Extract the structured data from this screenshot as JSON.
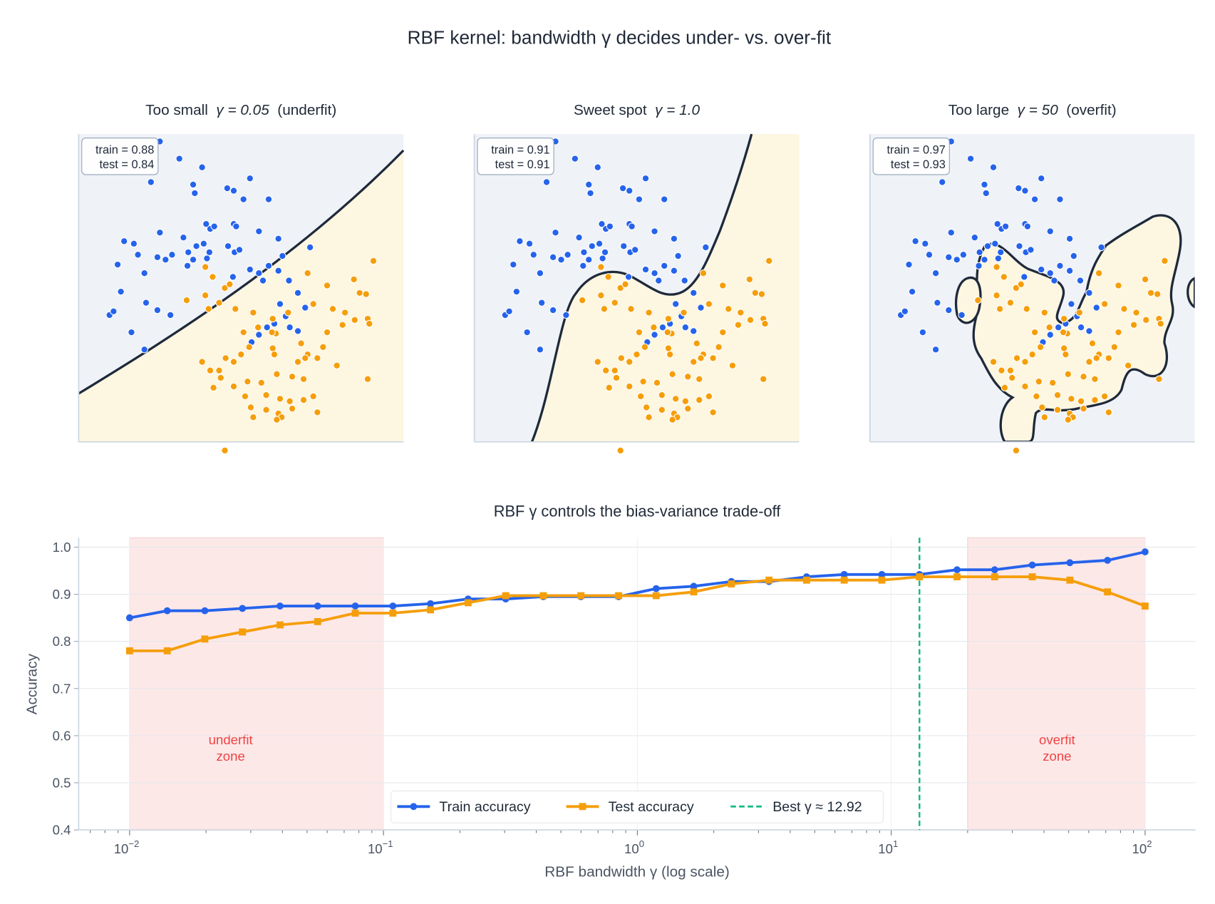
{
  "title": "RBF kernel: bandwidth γ decides under- vs. over-fit",
  "colors": {
    "class0": "#2563eb",
    "class1": "#f59e0b",
    "region0": "#eff2f7",
    "region1": "#fdf6e0",
    "boundary": "#1e293b",
    "zone": "#fde8e8",
    "zone_text": "#ef4444",
    "best": "#10b981"
  },
  "panels": [
    {
      "title_prefix": "Too small  ",
      "gamma_text": "γ = 0.05",
      "title_suffix": "  (underfit)",
      "train_label": "train = 0.88",
      "test_label": "test = 0.84"
    },
    {
      "title_prefix": "Sweet spot  ",
      "gamma_text": "γ = 1.0",
      "title_suffix": "",
      "train_label": "train = 0.91",
      "test_label": "test = 0.91"
    },
    {
      "title_prefix": "Too large  ",
      "gamma_text": "γ = 50",
      "title_suffix": "  (overfit)",
      "train_label": "train = 0.97",
      "test_label": "test = 0.93"
    }
  ],
  "scatter_data": {
    "xlim": [
      -1.5,
      2.5
    ],
    "ylim": [
      -1.0,
      1.5
    ],
    "class0": [
      [
        -0.5,
        1.44
      ],
      [
        -0.26,
        1.3
      ],
      [
        0.02,
        1.23
      ],
      [
        -0.61,
        1.11
      ],
      [
        -0.09,
        1.09
      ],
      [
        -0.07,
        1.02
      ],
      [
        0.33,
        1.06
      ],
      [
        0.41,
        1.04
      ],
      [
        0.61,
        1.14
      ],
      [
        0.84,
        0.97
      ],
      [
        0.53,
        0.97
      ],
      [
        -0.5,
        0.7
      ],
      [
        -0.21,
        0.66
      ],
      [
        0.12,
        0.73
      ],
      [
        0.17,
        0.75
      ],
      [
        0.41,
        0.77
      ],
      [
        0.44,
        0.75
      ],
      [
        0.07,
        0.77
      ],
      [
        -0.05,
        0.59
      ],
      [
        -0.15,
        0.54
      ],
      [
        0.04,
        0.61
      ],
      [
        0.11,
        0.54
      ],
      [
        -0.94,
        0.63
      ],
      [
        -0.82,
        0.61
      ],
      [
        -0.77,
        0.52
      ],
      [
        -0.53,
        0.5
      ],
      [
        -0.43,
        0.48
      ],
      [
        -0.35,
        0.52
      ],
      [
        -0.16,
        0.43
      ],
      [
        -0.09,
        0.48
      ],
      [
        0.08,
        0.49
      ],
      [
        0.34,
        0.59
      ],
      [
        0.42,
        0.54
      ],
      [
        0.48,
        0.56
      ],
      [
        0.72,
        0.71
      ],
      [
        0.96,
        0.65
      ],
      [
        1.01,
        0.51
      ],
      [
        0.72,
        0.37
      ],
      [
        0.84,
        0.43
      ],
      [
        0.96,
        0.39
      ],
      [
        -1.02,
        0.44
      ],
      [
        -0.69,
        0.37
      ],
      [
        -0.98,
        0.22
      ],
      [
        -0.67,
        0.13
      ],
      [
        -0.53,
        0.07
      ],
      [
        -0.37,
        0.03
      ],
      [
        -1.12,
        0.03
      ],
      [
        -1.07,
        0.06
      ],
      [
        -0.69,
        -0.25
      ],
      [
        -0.85,
        -0.11
      ],
      [
        1.35,
        0.58
      ],
      [
        1.09,
        0.31
      ],
      [
        0.61,
        0.4
      ],
      [
        0.77,
        0.31
      ],
      [
        0.4,
        0.34
      ],
      [
        1.2,
        0.21
      ],
      [
        0.98,
        0.12
      ],
      [
        1.05,
        0.02
      ],
      [
        0.91,
        -0.04
      ],
      [
        1.1,
        -0.07
      ],
      [
        1.2,
        -0.1
      ],
      [
        0.72,
        -0.13
      ],
      [
        0.82,
        -0.07
      ],
      [
        0.63,
        -0.19
      ],
      [
        1.29,
        0.09
      ]
    ],
    "class1": [
      [
        0.06,
        0.42
      ],
      [
        0.15,
        0.34
      ],
      [
        0.3,
        0.25
      ],
      [
        0.36,
        0.28
      ],
      [
        0.06,
        0.19
      ],
      [
        0.1,
        0.08
      ],
      [
        0.23,
        0.13
      ],
      [
        0.43,
        0.08
      ],
      [
        0.65,
        0.05
      ],
      [
        -0.17,
        0.15
      ],
      [
        0.71,
        -0.07
      ],
      [
        0.89,
        0.0
      ],
      [
        1.08,
        0.05
      ],
      [
        0.93,
        -0.12
      ],
      [
        0.53,
        -0.11
      ],
      [
        0.88,
        -0.11
      ],
      [
        1.32,
        0.37
      ],
      [
        1.56,
        0.27
      ],
      [
        1.89,
        0.32
      ],
      [
        2.13,
        0.47
      ],
      [
        1.96,
        0.21
      ],
      [
        2.04,
        0.2
      ],
      [
        1.39,
        0.12
      ],
      [
        1.63,
        0.08
      ],
      [
        1.78,
        0.05
      ],
      [
        1.9,
        -0.01
      ],
      [
        2.06,
        0.0
      ],
      [
        1.56,
        -0.11
      ],
      [
        1.75,
        -0.05
      ],
      [
        1.51,
        -0.23
      ],
      [
        1.24,
        -0.2
      ],
      [
        1.32,
        -0.29
      ],
      [
        0.02,
        -0.35
      ],
      [
        0.12,
        -0.42
      ],
      [
        0.23,
        -0.42
      ],
      [
        0.31,
        -0.32
      ],
      [
        0.41,
        -0.35
      ],
      [
        0.5,
        -0.29
      ],
      [
        0.6,
        -0.23
      ],
      [
        0.89,
        -0.24
      ],
      [
        0.91,
        -0.29
      ],
      [
        1.2,
        -0.35
      ],
      [
        1.29,
        -0.32
      ],
      [
        1.44,
        -0.32
      ],
      [
        1.68,
        -0.38
      ],
      [
        0.41,
        -0.55
      ],
      [
        0.58,
        -0.51
      ],
      [
        0.75,
        -0.52
      ],
      [
        0.94,
        -0.45
      ],
      [
        1.13,
        -0.47
      ],
      [
        1.27,
        -0.49
      ],
      [
        0.16,
        -0.56
      ],
      [
        0.25,
        -0.48
      ],
      [
        0.55,
        -0.63
      ],
      [
        0.81,
        -0.62
      ],
      [
        0.98,
        -0.65
      ],
      [
        1.1,
        -0.67
      ],
      [
        1.39,
        -0.63
      ],
      [
        0.81,
        -0.74
      ],
      [
        0.96,
        -0.77
      ],
      [
        1.0,
        -0.8
      ],
      [
        1.13,
        -0.73
      ],
      [
        1.27,
        -0.66
      ],
      [
        1.44,
        -0.76
      ],
      [
        0.62,
        -0.72
      ],
      [
        0.65,
        -0.8
      ],
      [
        0.94,
        -0.82
      ],
      [
        0.3,
        -1.07
      ],
      [
        2.06,
        -0.49
      ],
      [
        2.08,
        -0.04
      ]
    ]
  },
  "chart_data": {
    "type": "line",
    "title": "RBF γ controls the bias-variance trade-off",
    "xlabel": "RBF bandwidth γ (log scale)",
    "ylabel": "Accuracy",
    "xscale": "log",
    "xlim": [
      0.0063,
      158
    ],
    "ylim": [
      0.4,
      1.02
    ],
    "grid": true,
    "xticks": [
      {
        "value": 0.01,
        "base": "10",
        "exp": "−2"
      },
      {
        "value": 0.1,
        "base": "10",
        "exp": "−1"
      },
      {
        "value": 1,
        "base": "10",
        "exp": "0"
      },
      {
        "value": 10,
        "base": "10",
        "exp": "1"
      },
      {
        "value": 100,
        "base": "10",
        "exp": "2"
      }
    ],
    "yticks": [
      "0.4",
      "0.5",
      "0.6",
      "0.7",
      "0.8",
      "0.9",
      "1.0"
    ],
    "gamma_exp_range": [
      -2,
      2
    ],
    "n_points": 28,
    "series": [
      {
        "name": "Train accuracy",
        "color": "#2563eb",
        "marker": "circle",
        "values": [
          0.85,
          0.865,
          0.865,
          0.87,
          0.875,
          0.875,
          0.875,
          0.875,
          0.88,
          0.89,
          0.89,
          0.895,
          0.895,
          0.895,
          0.912,
          0.917,
          0.927,
          0.927,
          0.937,
          0.942,
          0.942,
          0.942,
          0.952,
          0.952,
          0.962,
          0.967,
          0.972,
          0.99
        ]
      },
      {
        "name": "Test accuracy",
        "color": "#f59e0b",
        "marker": "square",
        "values": [
          0.78,
          0.78,
          0.805,
          0.82,
          0.835,
          0.842,
          0.86,
          0.86,
          0.867,
          0.882,
          0.897,
          0.897,
          0.897,
          0.897,
          0.897,
          0.905,
          0.922,
          0.93,
          0.93,
          0.93,
          0.93,
          0.937,
          0.937,
          0.937,
          0.937,
          0.93,
          0.905,
          0.875
        ]
      }
    ],
    "best": {
      "label": "Best γ ≈ 12.92",
      "value": 12.92,
      "style": "dashed"
    },
    "zones": [
      {
        "range": [
          0.01,
          0.1
        ],
        "label_line1": "underfit",
        "label_line2": "zone",
        "label_at": [
          0.025,
          0.58
        ]
      },
      {
        "range": [
          20,
          100
        ],
        "label_line1": "overfit",
        "label_line2": "zone",
        "label_at": [
          45,
          0.58
        ]
      }
    ],
    "legend_placement": "lower-center"
  }
}
